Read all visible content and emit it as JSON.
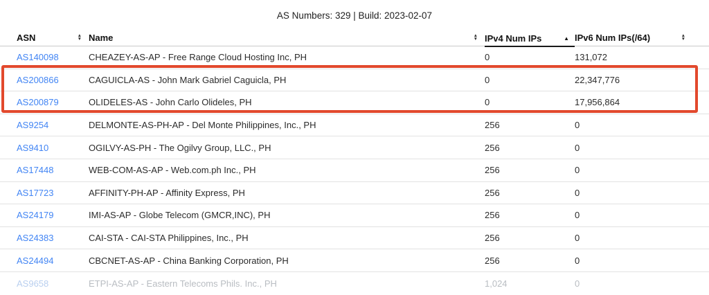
{
  "page": {
    "title": "AS Numbers: 329 | Build: 2023-02-07"
  },
  "colors": {
    "link_blue": "#4285f4",
    "highlight_red": "#e2492d",
    "row_divider": "#e2e2e2",
    "header_border": "#c9c9c9",
    "sort_active_underline": "#191919"
  },
  "icons": {
    "sort_up": "▲",
    "sort_down": "▼"
  },
  "table": {
    "columns": [
      {
        "label": "ASN",
        "sort": "both",
        "active": false
      },
      {
        "label": "Name",
        "sort": "both",
        "active": false
      },
      {
        "label": "IPv4 Num IPs",
        "sort": "asc",
        "active": true
      },
      {
        "label": "IPv6 Num IPs(/64)",
        "sort": "both",
        "active": false
      }
    ],
    "rows": [
      {
        "asn": "AS140098",
        "name": "CHEAZEY-AS-AP - Free Range Cloud Hosting Inc, PH",
        "ipv4": "0",
        "ipv6": "131,072",
        "highlighted": false
      },
      {
        "asn": "AS200866",
        "name": "CAGUICLA-AS - John Mark Gabriel Caguicla, PH",
        "ipv4": "0",
        "ipv6": "22,347,776",
        "highlighted": true
      },
      {
        "asn": "AS200879",
        "name": "OLIDELES-AS - John Carlo Olideles, PH",
        "ipv4": "0",
        "ipv6": "17,956,864",
        "highlighted": true
      },
      {
        "asn": "AS9254",
        "name": "DELMONTE-AS-PH-AP - Del Monte Philippines, Inc., PH",
        "ipv4": "256",
        "ipv6": "0",
        "highlighted": false
      },
      {
        "asn": "AS9410",
        "name": "OGILVY-AS-PH - The Ogilvy Group, LLC., PH",
        "ipv4": "256",
        "ipv6": "0",
        "highlighted": false
      },
      {
        "asn": "AS17448",
        "name": "WEB-COM-AS-AP - Web.com.ph Inc., PH",
        "ipv4": "256",
        "ipv6": "0",
        "highlighted": false
      },
      {
        "asn": "AS17723",
        "name": "AFFINITY-PH-AP - Affinity Express, PH",
        "ipv4": "256",
        "ipv6": "0",
        "highlighted": false
      },
      {
        "asn": "AS24179",
        "name": "IMI-AS-AP - Globe Telecom (GMCR,INC), PH",
        "ipv4": "256",
        "ipv6": "0",
        "highlighted": false
      },
      {
        "asn": "AS24383",
        "name": "CAI-STA - CAI-STA Philippines, Inc., PH",
        "ipv4": "256",
        "ipv6": "0",
        "highlighted": false
      },
      {
        "asn": "AS24494",
        "name": "CBCNET-AS-AP - China Banking Corporation, PH",
        "ipv4": "256",
        "ipv6": "0",
        "highlighted": false
      }
    ],
    "partial_row_clipped_at_bottom": {
      "asn": "AS9658",
      "name": "ETPI-AS-AP - Eastern Telecoms Phils. Inc., PH",
      "ipv4": "1,024",
      "ipv6": "0"
    }
  },
  "annotation": {
    "highlight_box_rows": [
      "AS200866",
      "AS200879"
    ]
  }
}
